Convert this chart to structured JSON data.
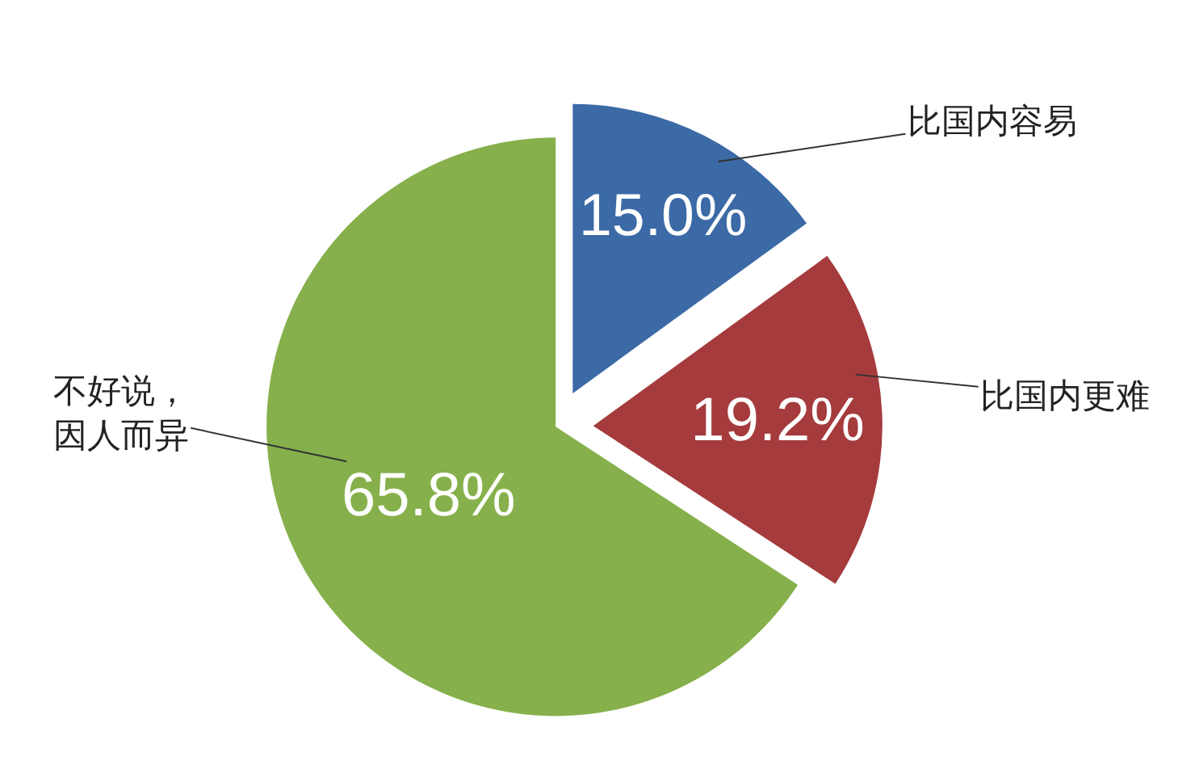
{
  "chart_data": {
    "type": "pie",
    "categories": [
      "比国内容易",
      "比国内更难",
      "不好说，因人而异"
    ],
    "values": [
      15.0,
      19.2,
      65.8
    ],
    "colors": [
      "#3b6aa6",
      "#a53b3d",
      "#86b04b"
    ],
    "value_labels": [
      "15.0%",
      "19.2%",
      "65.8%"
    ]
  }
}
